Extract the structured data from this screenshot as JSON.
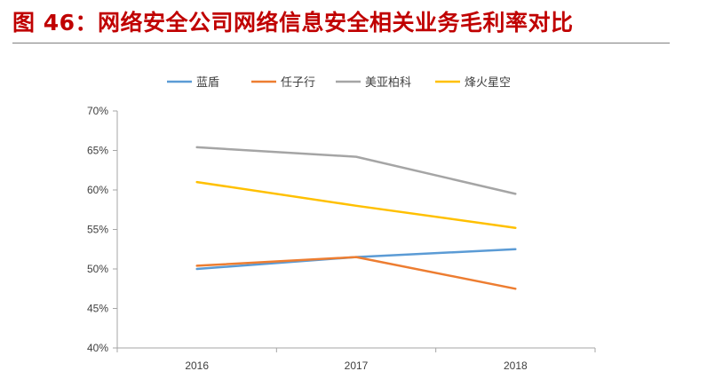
{
  "figure": {
    "title": "图 46：网络安全公司网络信息安全相关业务毛利率对比"
  },
  "chart_data": {
    "type": "line",
    "categories": [
      "2016",
      "2017",
      "2018"
    ],
    "y_tick_labels": [
      "40%",
      "45%",
      "50%",
      "55%",
      "60%",
      "65%",
      "70%"
    ],
    "ylim": [
      40,
      70
    ],
    "y_unit": "%",
    "grid": false,
    "legend_placement": "top",
    "series": [
      {
        "name": "蓝盾",
        "color": "#5b9bd5",
        "values": [
          50.0,
          51.5,
          52.5
        ]
      },
      {
        "name": "任子行",
        "color": "#ed7d31",
        "values": [
          50.4,
          51.5,
          47.5
        ]
      },
      {
        "name": "美亚柏科",
        "color": "#a5a5a5",
        "values": [
          65.4,
          64.2,
          59.5
        ]
      },
      {
        "name": "烽火星空",
        "color": "#ffc000",
        "values": [
          61.0,
          58.0,
          55.2
        ]
      }
    ]
  }
}
